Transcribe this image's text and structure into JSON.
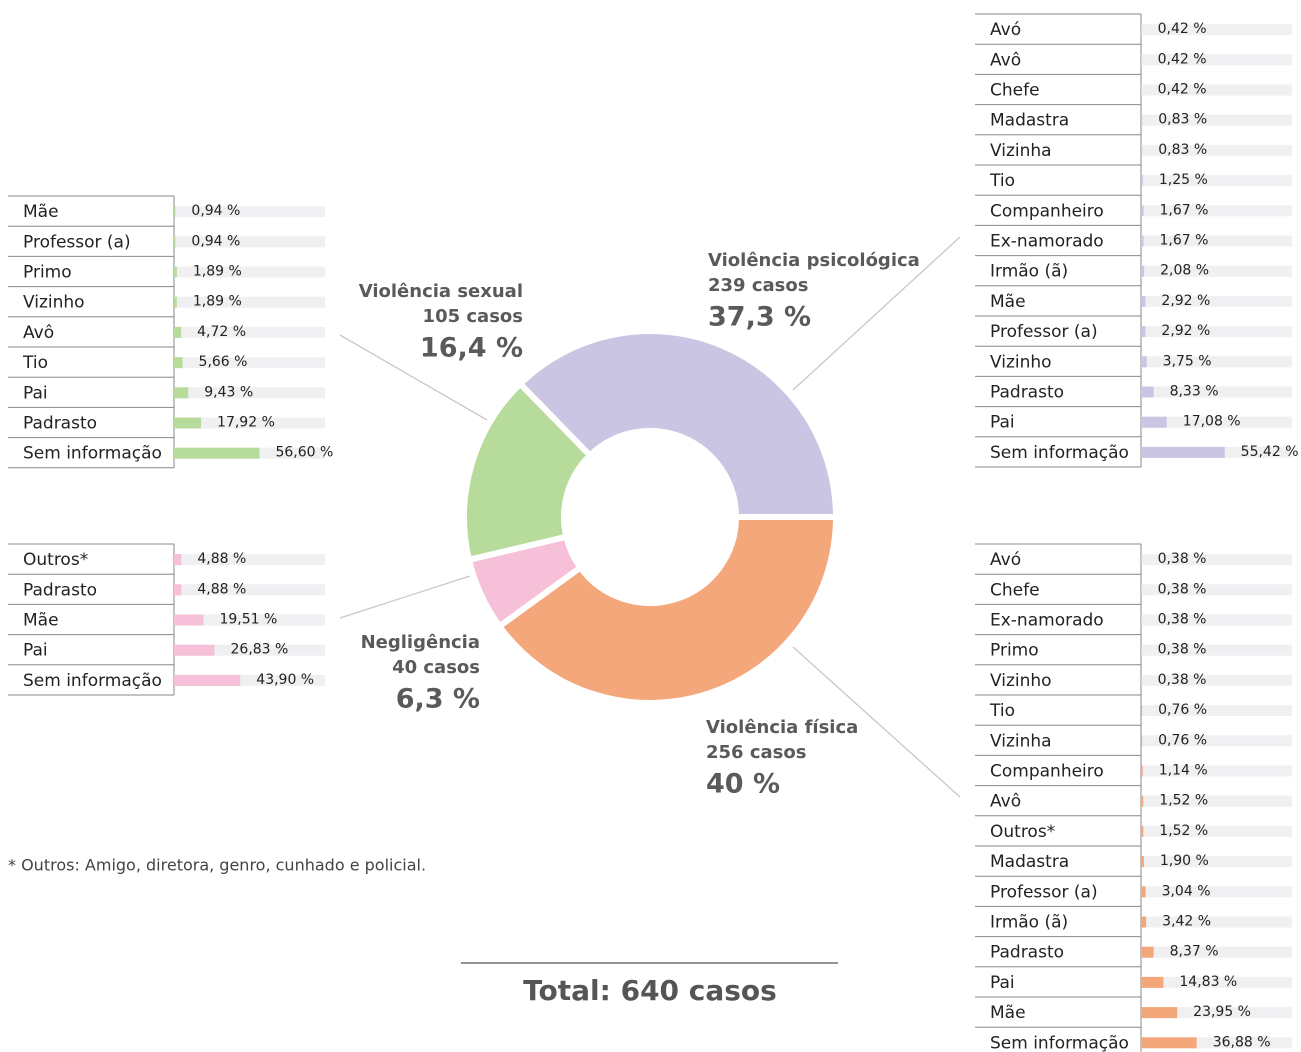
{
  "chart_data": {
    "type": "pie",
    "categories": [
      "Violência psicológica",
      "Violência sexual",
      "Negligência",
      "Violência física"
    ],
    "counts": [
      239,
      105,
      40,
      256
    ],
    "count_labels": [
      "239 casos",
      "105 casos",
      "40 casos",
      "256 casos"
    ],
    "values": [
      37.3,
      16.4,
      6.3,
      40
    ],
    "value_labels": [
      "37,3 %",
      "16,4 %",
      "6,3 %",
      "40 %"
    ],
    "colors": [
      "#c9c5e2",
      "#b7db9b",
      "#f5c0d8",
      "#f5a77c"
    ],
    "bar_xlim": [
      0,
      100
    ],
    "tables": [
      {
        "rows": [
          {
            "name": "Avó",
            "value": 0.42,
            "value_label": "0,42 %"
          },
          {
            "name": "Avô",
            "value": 0.42,
            "value_label": "0,42 %"
          },
          {
            "name": "Chefe",
            "value": 0.42,
            "value_label": "0,42 %"
          },
          {
            "name": "Madastra",
            "value": 0.83,
            "value_label": "0,83 %"
          },
          {
            "name": "Vizinha",
            "value": 0.83,
            "value_label": "0,83 %"
          },
          {
            "name": "Tio",
            "value": 1.25,
            "value_label": "1,25 %"
          },
          {
            "name": "Companheiro",
            "value": 1.67,
            "value_label": "1,67 %"
          },
          {
            "name": "Ex-namorado",
            "value": 1.67,
            "value_label": "1,67 %"
          },
          {
            "name": "Irmão (ã)",
            "value": 2.08,
            "value_label": "2,08 %"
          },
          {
            "name": "Mãe",
            "value": 2.92,
            "value_label": "2,92 %"
          },
          {
            "name": "Professor (a)",
            "value": 2.92,
            "value_label": "2,92 %"
          },
          {
            "name": "Vizinho",
            "value": 3.75,
            "value_label": "3,75 %"
          },
          {
            "name": "Padrasto",
            "value": 8.33,
            "value_label": "8,33 %"
          },
          {
            "name": "Pai",
            "value": 17.08,
            "value_label": "17,08 %"
          },
          {
            "name": "Sem informação",
            "value": 55.42,
            "value_label": "55,42 %"
          }
        ]
      },
      {
        "rows": [
          {
            "name": "Mãe",
            "value": 0.94,
            "value_label": "0,94 %"
          },
          {
            "name": "Professor (a)",
            "value": 0.94,
            "value_label": "0,94 %"
          },
          {
            "name": "Primo",
            "value": 1.89,
            "value_label": "1,89 %"
          },
          {
            "name": "Vizinho",
            "value": 1.89,
            "value_label": "1,89 %"
          },
          {
            "name": "Avô",
            "value": 4.72,
            "value_label": "4,72 %"
          },
          {
            "name": "Tio",
            "value": 5.66,
            "value_label": "5,66 %"
          },
          {
            "name": "Pai",
            "value": 9.43,
            "value_label": "9,43 %"
          },
          {
            "name": "Padrasto",
            "value": 17.92,
            "value_label": "17,92 %"
          },
          {
            "name": "Sem informação",
            "value": 56.6,
            "value_label": "56,60 %"
          }
        ]
      },
      {
        "rows": [
          {
            "name": "Outros*",
            "value": 4.88,
            "value_label": "4,88 %"
          },
          {
            "name": "Padrasto",
            "value": 4.88,
            "value_label": "4,88 %"
          },
          {
            "name": "Mãe",
            "value": 19.51,
            "value_label": "19,51 %"
          },
          {
            "name": "Pai",
            "value": 26.83,
            "value_label": "26,83 %"
          },
          {
            "name": "Sem informação",
            "value": 43.9,
            "value_label": "43,90 %"
          }
        ]
      },
      {
        "rows": [
          {
            "name": "Avó",
            "value": 0.38,
            "value_label": "0,38 %"
          },
          {
            "name": "Chefe",
            "value": 0.38,
            "value_label": "0,38 %"
          },
          {
            "name": "Ex-namorado",
            "value": 0.38,
            "value_label": "0,38 %"
          },
          {
            "name": "Primo",
            "value": 0.38,
            "value_label": "0,38 %"
          },
          {
            "name": "Vizinho",
            "value": 0.38,
            "value_label": "0,38 %"
          },
          {
            "name": "Tio",
            "value": 0.76,
            "value_label": "0,76 %"
          },
          {
            "name": "Vizinha",
            "value": 0.76,
            "value_label": "0,76 %"
          },
          {
            "name": "Companheiro",
            "value": 1.14,
            "value_label": "1,14 %"
          },
          {
            "name": "Avô",
            "value": 1.52,
            "value_label": "1,52 %"
          },
          {
            "name": "Outros*",
            "value": 1.52,
            "value_label": "1,52 %"
          },
          {
            "name": "Madastra",
            "value": 1.9,
            "value_label": "1,90 %"
          },
          {
            "name": "Professor (a)",
            "value": 3.04,
            "value_label": "3,04 %"
          },
          {
            "name": "Irmão (ã)",
            "value": 3.42,
            "value_label": "3,42 %"
          },
          {
            "name": "Padrasto",
            "value": 8.37,
            "value_label": "8,37 %"
          },
          {
            "name": "Pai",
            "value": 14.83,
            "value_label": "14,83 %"
          },
          {
            "name": "Mãe",
            "value": 23.95,
            "value_label": "23,95 %"
          },
          {
            "name": "Sem informação",
            "value": 36.88,
            "value_label": "36,88 %"
          }
        ]
      }
    ],
    "footnote": "* Outros:  Amigo, diretora, genro, cunhado e policial.",
    "total_label": "Total:  640 casos"
  }
}
